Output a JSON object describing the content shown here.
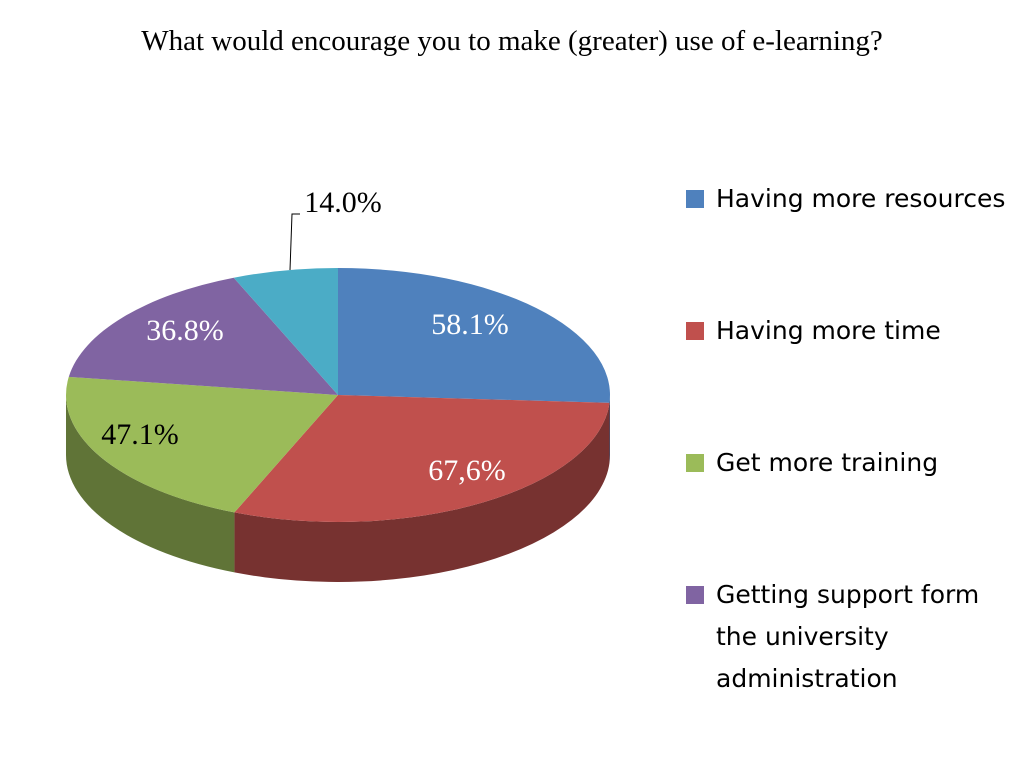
{
  "chart_data": {
    "type": "pie",
    "title": "What would encourage you to make (greater) use of e-learning?",
    "categories": [
      "Having more resources",
      "Having more time",
      "Get more training",
      "Getting support form the university administration",
      null
    ],
    "values": [
      58.1,
      67.6,
      47.1,
      36.8,
      14.0
    ],
    "value_labels": [
      "58.1%",
      "67,6%",
      "47.1%",
      "36.8%",
      "14.0%"
    ],
    "colors": [
      "#4f81bd",
      "#c0504d",
      "#9bbb59",
      "#8064a2",
      "#4bacc6"
    ],
    "legend": "right"
  }
}
